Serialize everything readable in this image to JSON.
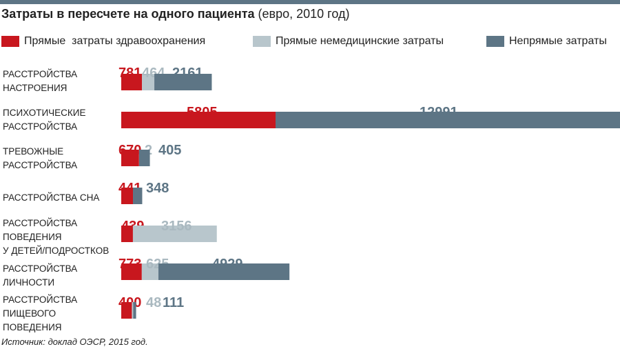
{
  "header": {
    "title_bold": "Затраты в пересчете на одного пациента",
    "title_unit": " (евро, 2010 год)"
  },
  "legend": [
    {
      "label": "Прямые  затраты здравоохранения",
      "color": "#c8171e"
    },
    {
      "label": "Прямые немедицинские затраты",
      "color": "#b8c6cc"
    },
    {
      "label": "Непрямые затраты",
      "color": "#5d7585"
    }
  ],
  "chart_data": {
    "type": "bar",
    "orientation": "horizontal",
    "stacked": true,
    "categories": [
      [
        "РАССТРОЙСТВА",
        "НАСТРОЕНИЯ"
      ],
      [
        "ПСИХОТИЧЕСКИЕ",
        "РАССТРОЙСТВА"
      ],
      [
        "ТРЕВОЖНЫЕ",
        "РАССТРОЙСТВА"
      ],
      [
        "РАССТРОЙСТВА СНА"
      ],
      [
        "РАССТРОЙСТВА",
        "ПОВЕДЕНИЯ",
        "У ДЕТЕЙ/ПОДРОСТКОВ"
      ],
      [
        "РАССТРОЙСТВА",
        "ЛИЧНОСТИ"
      ],
      [
        "РАССТРОЙСТВА",
        "ПИЩЕВОГО",
        "ПОВЕДЕНИЯ"
      ]
    ],
    "series": [
      {
        "name": "Прямые  затраты здравоохранения",
        "color": "#c8171e",
        "label_color": "#c8171e",
        "values": [
          781,
          5805,
          670,
          441,
          439,
          773,
          400
        ]
      },
      {
        "name": "Прямые немедицинские затраты",
        "color": "#b8c6cc",
        "label_color": "#aab9c0",
        "values": [
          464,
          null,
          2,
          null,
          3156,
          625,
          48
        ]
      },
      {
        "name": "Непрямые затраты",
        "color": "#5d7585",
        "label_color": "#5d7585",
        "values": [
          2161,
          12991,
          405,
          348,
          null,
          4929,
          111
        ]
      }
    ]
  },
  "source": "Источник:  доклад ОЭСР, 2015 год."
}
